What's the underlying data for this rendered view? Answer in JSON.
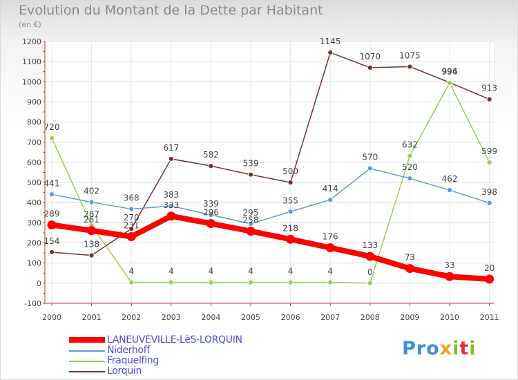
{
  "title": "Evolution du Montant de la Dette par Habitant",
  "unit": "(en €)",
  "logo": "Proxiti",
  "chart_data": {
    "type": "line",
    "title": "Evolution du Montant de la Dette par Habitant",
    "ylabel": "(en €)",
    "xlabel": "",
    "x": [
      "2000",
      "2001",
      "2002",
      "2003",
      "2004",
      "2005",
      "2006",
      "2007",
      "2008",
      "2009",
      "2010",
      "2011"
    ],
    "yticks": [
      1200,
      1100,
      1000,
      900,
      800,
      700,
      600,
      500,
      400,
      300,
      200,
      100,
      0,
      -100
    ],
    "ylim": [
      -100,
      1200
    ],
    "grid": true,
    "legend_position": "bottom-left",
    "series": [
      {
        "name": "LANEUVEVILLE-LèS-LORQUIN",
        "color": "#ff0000",
        "values": [
          289,
          261,
          231,
          333,
          296,
          258,
          218,
          176,
          133,
          73,
          33,
          20
        ]
      },
      {
        "name": "Niderhoff",
        "color": "#5b9bd5",
        "values": [
          441,
          402,
          368,
          383,
          339,
          295,
          355,
          414,
          570,
          520,
          462,
          398
        ]
      },
      {
        "name": "Fraquelfing",
        "color": "#92d050",
        "values": [
          720,
          287,
          4,
          4,
          4,
          4,
          4,
          4,
          0,
          632,
          994,
          599
        ]
      },
      {
        "name": "Lorquin",
        "color": "#7b2c2c",
        "values": [
          154,
          138,
          270,
          617,
          582,
          539,
          500,
          1145,
          1070,
          1075,
          996,
          913
        ]
      }
    ]
  }
}
